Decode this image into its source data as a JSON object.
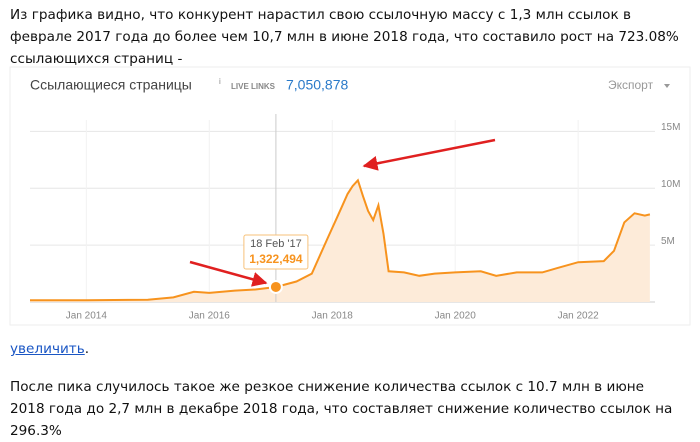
{
  "paragraphs": [
    {
      "lines": [
        "Из графика видно, что конкурент нарастил свою ссылочную массу с 1,3 млн ссылок в",
        "феврале 2017 года до более чем 10,7 млн в июне 2018 года, что составило рост на 723.08%",
        "ссылающихся страниц -"
      ]
    },
    {
      "lines": [
        "После пика случилось такое же резкое снижение количества ссылок с 10.7 млн в июне",
        "2018 года до 2,7 млн в декабре 2018 года, что составляет снижение количество ссылок на",
        "296.3%"
      ]
    }
  ],
  "link": {
    "text": "увеличить",
    "suffix": "."
  },
  "chart_data": {
    "type": "area",
    "title": "Ссылающиеся страницы",
    "info": "i",
    "badge": "LIVE LINKS",
    "total": "7,050,878",
    "export": "Экспорт",
    "x": [
      "2013-02",
      "2014-01",
      "2015-01",
      "2015-06",
      "2015-10",
      "2016-01",
      "2016-06",
      "2016-10",
      "2017-02",
      "2017-06",
      "2017-09",
      "2017-12",
      "2018-02",
      "2018-03",
      "2018-04",
      "2018-05",
      "2018-06",
      "2018-07",
      "2018-08",
      "2018-09",
      "2018-10",
      "2018-11",
      "2018-12",
      "2019-03",
      "2019-06",
      "2019-09",
      "2020-01",
      "2020-06",
      "2020-09",
      "2021-01",
      "2021-06",
      "2021-09",
      "2022-01",
      "2022-06",
      "2022-08",
      "2022-10",
      "2022-12",
      "2023-02",
      "2023-03"
    ],
    "series": [
      {
        "color": "#f7931e",
        "fill": "#fdebd9",
        "values": [
          150000,
          150000,
          200000,
          400000,
          900000,
          800000,
          1000000,
          1100000,
          1322494,
          1800000,
          2500000,
          5500000,
          7500000,
          8500000,
          9500000,
          10200000,
          10700000,
          9300000,
          8000000,
          7200000,
          8500000,
          6000000,
          2700000,
          2600000,
          2300000,
          2500000,
          2600000,
          2700000,
          2300000,
          2600000,
          2600000,
          3000000,
          3500000,
          3600000,
          4500000,
          7000000,
          7800000,
          7600000,
          7700000
        ]
      }
    ],
    "xlim": [
      "2013-02",
      "2023-04"
    ],
    "xticks": [
      {
        "value": "2014-01",
        "label": "Jan 2014"
      },
      {
        "value": "2016-01",
        "label": "Jan 2016"
      },
      {
        "value": "2018-01",
        "label": "Jan 2018"
      },
      {
        "value": "2020-01",
        "label": "Jan 2020"
      },
      {
        "value": "2022-01",
        "label": "Jan 2022"
      }
    ],
    "ylim": [
      0,
      16000000
    ],
    "yticks": [
      {
        "value": 5000000,
        "label": "5M"
      },
      {
        "value": 10000000,
        "label": "10M"
      },
      {
        "value": 15000000,
        "label": "15M"
      }
    ],
    "grid": true,
    "tooltip": {
      "date": "18 Feb '17",
      "value": 1322494,
      "label": "1,322,494"
    }
  }
}
